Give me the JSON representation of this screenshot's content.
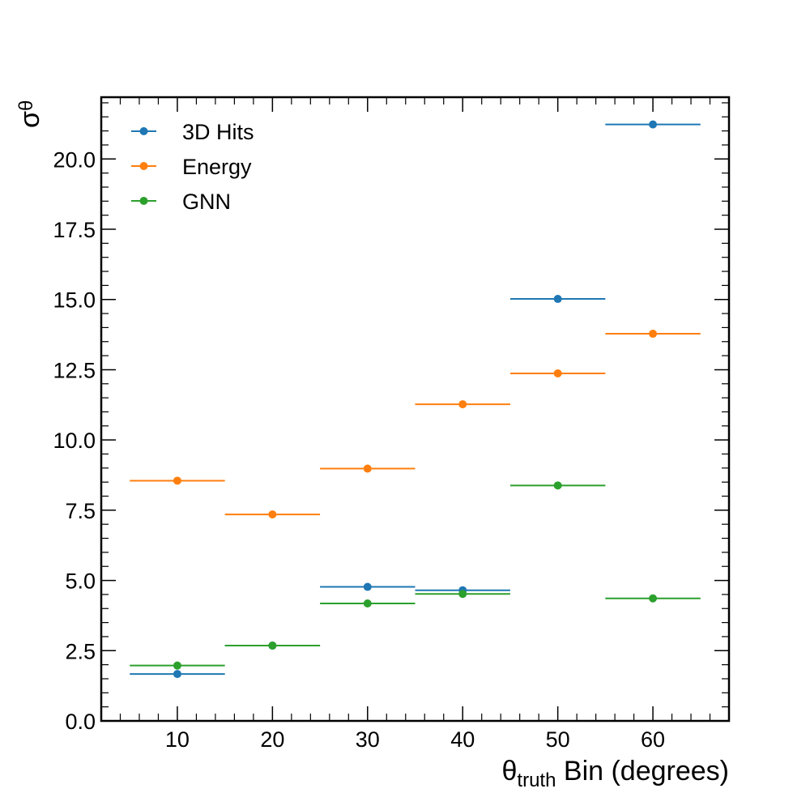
{
  "chart_data": {
    "type": "scatter",
    "title": "",
    "xlabel_main": "θ",
    "xlabel_sub": "truth",
    "xlabel_rest": " Bin (degrees)",
    "ylabel_main": "σ",
    "ylabel_sub": "θ",
    "xlim": [
      2,
      68
    ],
    "ylim": [
      0,
      22.2
    ],
    "xticks": [
      10,
      20,
      30,
      40,
      50,
      60
    ],
    "xtick_labels": [
      "10",
      "20",
      "30",
      "40",
      "50",
      "60"
    ],
    "yticks": [
      0,
      2.5,
      5,
      7.5,
      10,
      12.5,
      15,
      17.5,
      20
    ],
    "ytick_labels": [
      "0.0",
      "2.5",
      "5.0",
      "7.5",
      "10.0",
      "12.5",
      "15.0",
      "17.5",
      "20.0"
    ],
    "bin_half_width": 5,
    "legend_position": "top-left",
    "series": [
      {
        "name": "3D Hits",
        "color": "#1f77b4",
        "x": [
          10,
          20,
          30,
          40,
          50,
          60
        ],
        "y": [
          1.67,
          2.68,
          4.77,
          4.65,
          15.02,
          21.23
        ]
      },
      {
        "name": "Energy",
        "color": "#ff7f0e",
        "x": [
          10,
          20,
          30,
          40,
          50,
          60
        ],
        "y": [
          8.55,
          7.35,
          8.98,
          11.27,
          12.37,
          13.78
        ]
      },
      {
        "name": "GNN",
        "color": "#2ca02c",
        "x": [
          10,
          20,
          30,
          40,
          50,
          60
        ],
        "y": [
          1.97,
          2.68,
          4.18,
          4.52,
          8.38,
          4.36
        ]
      }
    ]
  }
}
